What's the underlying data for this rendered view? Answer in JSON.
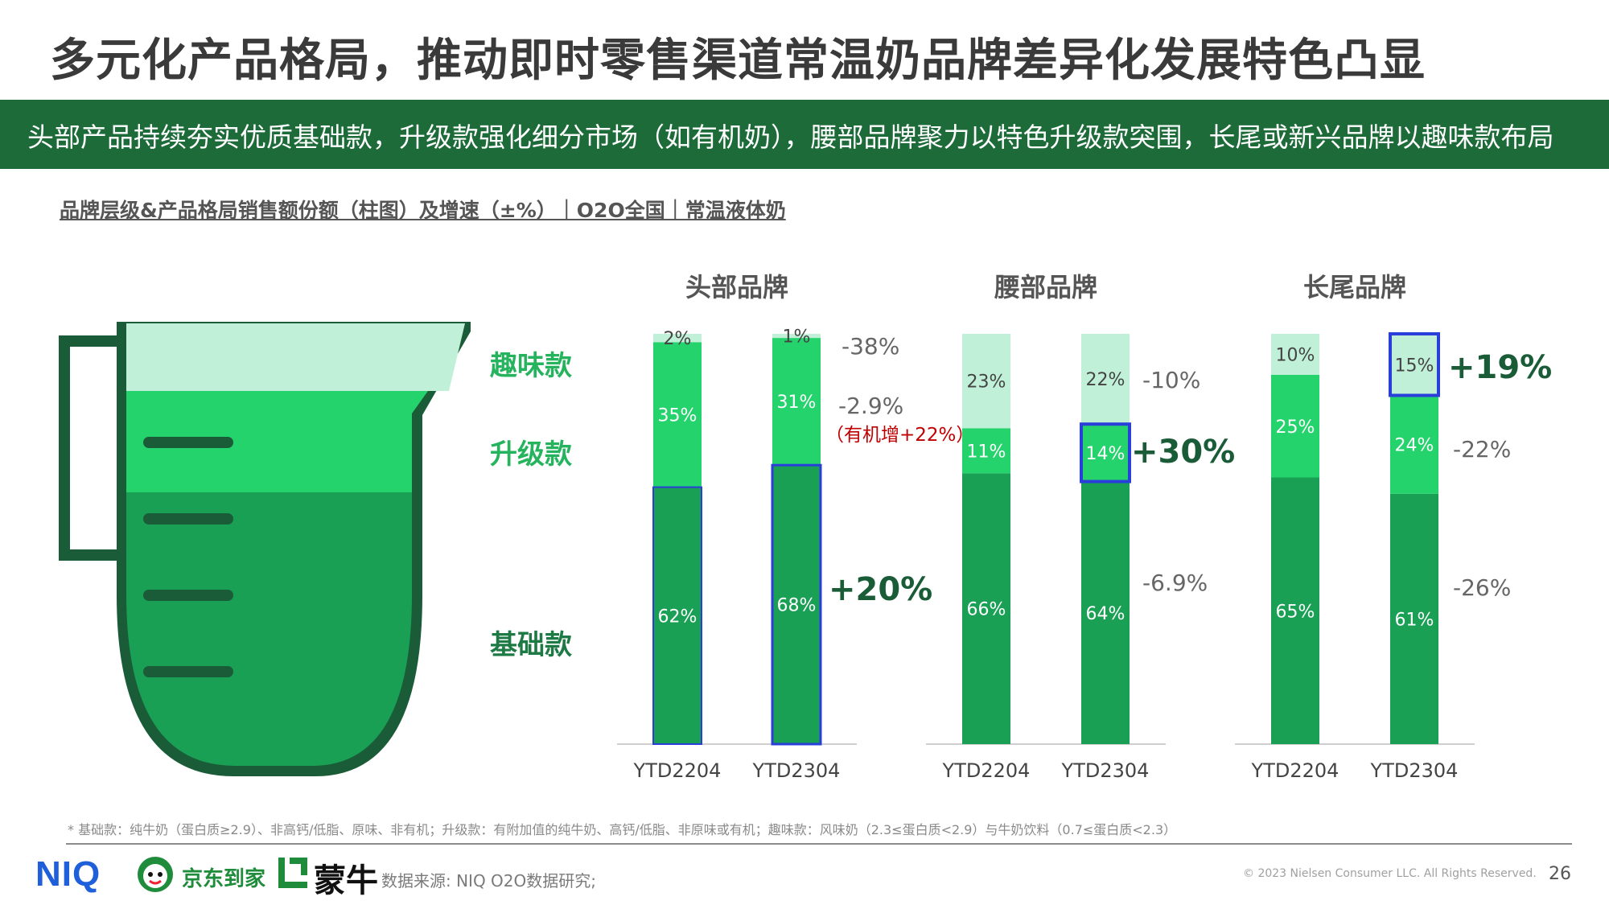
{
  "title": "多元化产品格局，推动即时零售渠道常温奶品牌差异化发展特色凸显",
  "banner": "头部产品持续夯实优质基础款，升级款强化细分市场（如有机奶），腰部品牌聚力以特色升级款突围，长尾或新兴品牌以趣味款布局",
  "subtitle": "品牌层级&产品格局销售额份额（柱图）及增速（±%）｜O2O全国｜常温液体奶",
  "legend": {
    "fun": "趣味款",
    "upgrade": "升级款",
    "basic": "基础款"
  },
  "colors": {
    "basic": "#19a055",
    "upgrade": "#25d36d",
    "fun": "#c1f0d8",
    "dark_green": "#1a5c37",
    "highlight_border": "#2a3fd9",
    "annotation_red": "#c00000"
  },
  "chart_data": {
    "type": "bar",
    "stacked": true,
    "groups": [
      {
        "name": "头部品牌",
        "categories": [
          "YTD2204",
          "YTD2304"
        ],
        "series": [
          {
            "name": "基础款",
            "values": [
              62,
              68
            ],
            "labels": [
              "62%",
              "68%"
            ],
            "growth": "+20%"
          },
          {
            "name": "升级款",
            "values": [
              35,
              31
            ],
            "labels": [
              "35%",
              "31%"
            ],
            "growth": "-2.9%",
            "note": "（有机增+22%）"
          },
          {
            "name": "趣味款",
            "values": [
              2,
              1
            ],
            "labels": [
              "2%",
              "1%"
            ],
            "growth": "-38%"
          }
        ]
      },
      {
        "name": "腰部品牌",
        "categories": [
          "YTD2204",
          "YTD2304"
        ],
        "series": [
          {
            "name": "基础款",
            "values": [
              66,
              64
            ],
            "labels": [
              "66%",
              "64%"
            ],
            "growth": "-6.9%"
          },
          {
            "name": "升级款",
            "values": [
              11,
              14
            ],
            "labels": [
              "11%",
              "14%"
            ],
            "growth": "+30%"
          },
          {
            "name": "趣味款",
            "values": [
              23,
              22
            ],
            "labels": [
              "23%",
              "22%"
            ],
            "growth": "-10%"
          }
        ]
      },
      {
        "name": "长尾品牌",
        "categories": [
          "YTD2204",
          "YTD2304"
        ],
        "series": [
          {
            "name": "基础款",
            "values": [
              65,
              61
            ],
            "labels": [
              "65%",
              "61%"
            ],
            "growth": "-26%"
          },
          {
            "name": "升级款",
            "values": [
              25,
              24
            ],
            "labels": [
              "25%",
              "24%"
            ],
            "growth": "-22%"
          },
          {
            "name": "趣味款",
            "values": [
              10,
              15
            ],
            "labels": [
              "10%",
              "15%"
            ],
            "growth": "+19%"
          }
        ]
      }
    ]
  },
  "footnote": "* 基础款：纯牛奶（蛋白质≥2.9）、非高钙/低脂、原味、非有机；升级款：有附加值的纯牛奶、高钙/低脂、非原味或有机；趣味款：风味奶（2.3≤蛋白质<2.9）与牛奶饮料（0.7≤蛋白质<2.3）",
  "source": "数据来源: NIQ O2O数据研究;",
  "copyright": "© 2023 Nielsen Consumer LLC. All Rights Reserved.",
  "page_number": "26",
  "logos": {
    "niq": "NIQ",
    "jd": "京东到家",
    "mengniu": "蒙牛"
  }
}
